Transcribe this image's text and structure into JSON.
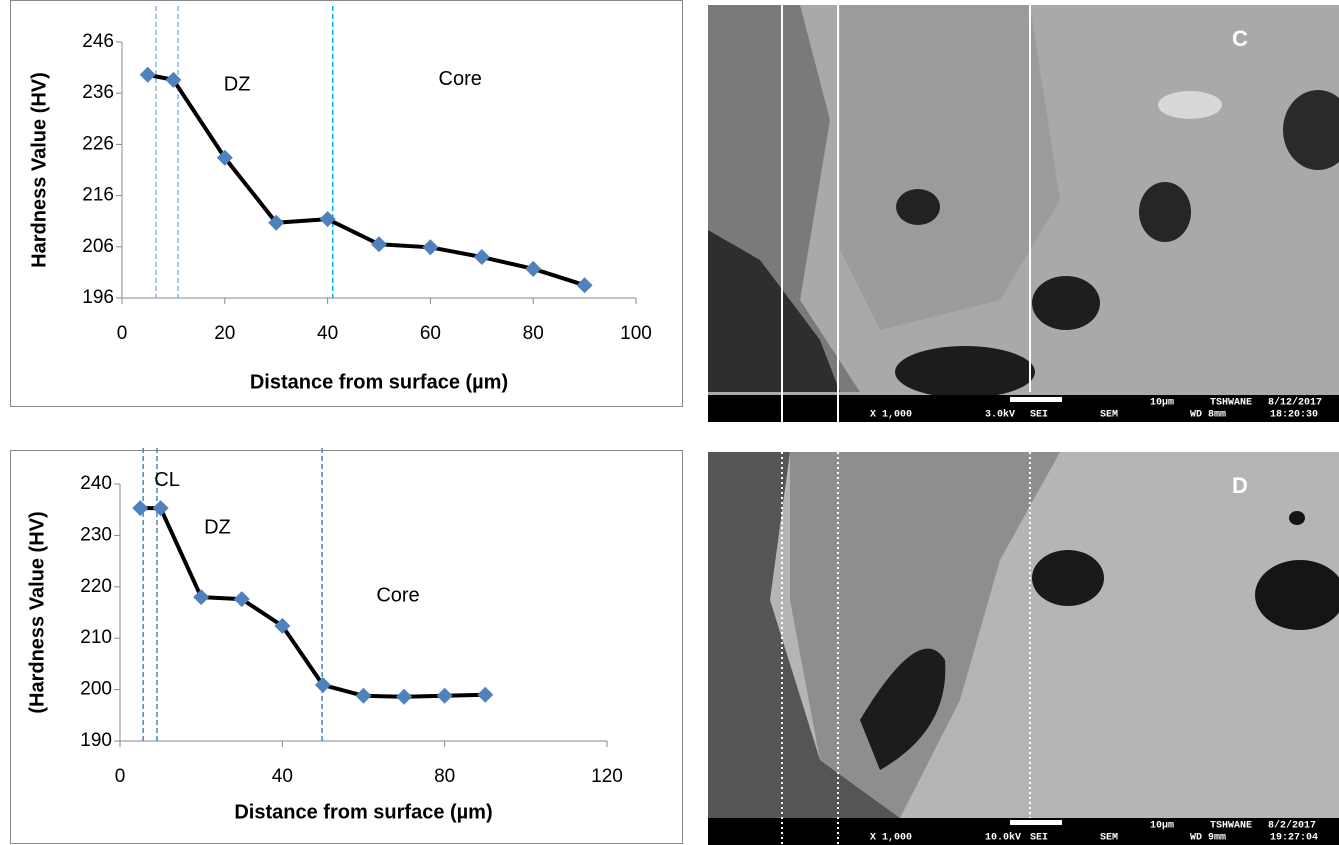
{
  "chart_data": [
    {
      "type": "line",
      "x_label": "Distance from surface (µm)",
      "y_label": "Hardness Value (HV)",
      "x": [
        5,
        10,
        20,
        30,
        40,
        50,
        60,
        70,
        80,
        90
      ],
      "values": [
        239.6,
        238.6,
        223.4,
        210.7,
        211.4,
        206.5,
        205.9,
        204,
        201.7,
        198.5
      ],
      "color": "#000000",
      "marker_color": "#4f81bd",
      "xlim": [
        0,
        100
      ],
      "xticks": [
        0,
        20,
        40,
        60,
        80,
        100
      ],
      "ylim": [
        196,
        246
      ],
      "yticks": [
        196,
        206,
        216,
        226,
        236,
        246
      ],
      "vlines": [
        {
          "x": 6.6,
          "color": "#8db3e2"
        },
        {
          "x": 10.9,
          "color": "#8db3e2"
        },
        {
          "x": 41,
          "color": "#00b0f0"
        }
      ],
      "annotations": [
        {
          "text": "DZ",
          "x": 22.4,
          "y": 237.6
        },
        {
          "text": "Core",
          "x": 65.8,
          "y": 238.6
        }
      ]
    },
    {
      "type": "line",
      "x_label": "Distance from surface (µm)",
      "y_label": "(Hardness Value (HV)",
      "x": [
        5,
        10,
        20,
        30,
        40,
        50,
        60,
        70,
        80,
        90
      ],
      "values": [
        235.3,
        235.3,
        218,
        217.6,
        212.4,
        200.9,
        198.8,
        198.6,
        198.8,
        199
      ],
      "color": "#000000",
      "marker_color": "#4f81bd",
      "xlim": [
        0,
        120
      ],
      "xticks": [
        0,
        40,
        80,
        120
      ],
      "ylim": [
        190,
        240
      ],
      "yticks": [
        190,
        200,
        210,
        220,
        230,
        240
      ],
      "vlines": [
        {
          "x": 5.7,
          "color": "#4f81bd"
        },
        {
          "x": 9.1,
          "color": "#4f81bd"
        },
        {
          "x": 49.8,
          "color": "#4f81bd"
        }
      ],
      "annotations": [
        {
          "text": "CL",
          "x": 11.6,
          "y": 240.6
        },
        {
          "text": "DZ",
          "x": 24,
          "y": 231.4
        },
        {
          "text": "Core",
          "x": 68.5,
          "y": 218.2
        }
      ]
    }
  ],
  "micrographs": [
    {
      "label": "C",
      "info": [
        "10µm",
        "TSHWANE",
        "8/12/2017",
        "X 1,000",
        "3.0kV",
        "SEI",
        "SEM",
        "WD 8mm",
        "18:20:30"
      ]
    },
    {
      "label": "D",
      "info": [
        "10µm",
        "TSHWANE",
        "8/2/2017",
        "X 1,000",
        "10.0kV",
        "SEI",
        "SEM",
        "WD 9mm",
        "19:27:04"
      ]
    }
  ]
}
